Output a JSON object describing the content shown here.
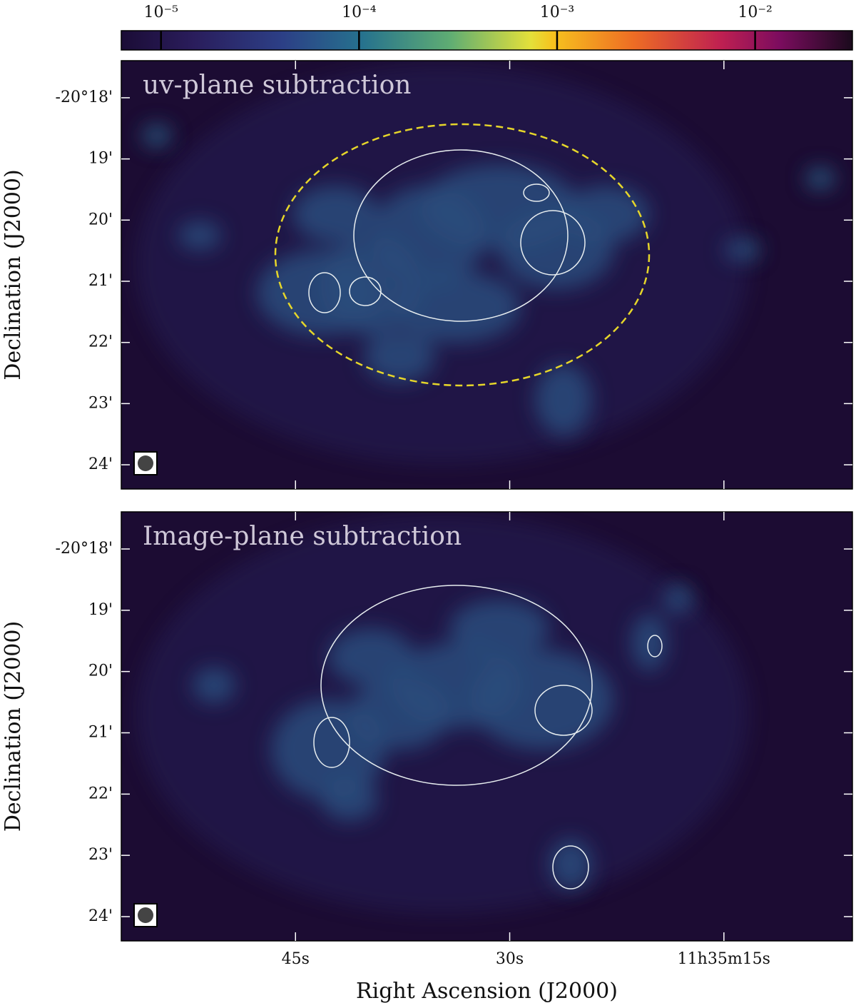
{
  "chart_data": [
    {
      "type": "image",
      "title": "uv-plane subtraction",
      "colorbar": {
        "log": true,
        "lim": [
          6.3e-06,
          0.031
        ],
        "ticks": [
          {
            "value": 1e-05,
            "label": "10⁻⁵"
          },
          {
            "value": 0.0001,
            "label": "10⁻⁴"
          },
          {
            "value": 0.001,
            "label": "10⁻³"
          },
          {
            "value": 0.01,
            "label": "10⁻²"
          }
        ]
      },
      "ylabel": "Declination (J2000)",
      "xlim": [
        57.2,
        6.0
      ],
      "xticks": [
        45,
        30,
        15
      ],
      "ylim": [
        -20.4066,
        -20.2899
      ],
      "yticks": [
        {
          "value": -20.3,
          "label": "-20°18'"
        },
        {
          "value": -20.31667,
          "label": "19'"
        },
        {
          "value": -20.33333,
          "label": "20'"
        },
        {
          "value": -20.35,
          "label": "21'"
        },
        {
          "value": -20.36667,
          "label": "22'"
        },
        {
          "value": -20.38333,
          "label": "23'"
        },
        {
          "value": -20.4,
          "label": "24'"
        }
      ]
    },
    {
      "type": "image",
      "title": "Image-plane subtraction",
      "ylabel": "Declination (J2000)",
      "xlabel": "Right Ascension (J2000)",
      "xlim": [
        57.2,
        6.0
      ],
      "xticks": [
        {
          "value": 45,
          "label": "45s"
        },
        {
          "value": 30,
          "label": "30s"
        },
        {
          "value": 15,
          "label": "11h35m15s"
        }
      ],
      "ylim": [
        -20.4066,
        -20.2899
      ],
      "yticks": [
        {
          "value": -20.3,
          "label": "-20°18'"
        },
        {
          "value": -20.31667,
          "label": "19'"
        },
        {
          "value": -20.33333,
          "label": "20'"
        },
        {
          "value": -20.35,
          "label": "21'"
        },
        {
          "value": -20.36667,
          "label": "22'"
        },
        {
          "value": -20.38333,
          "label": "23'"
        },
        {
          "value": -20.4,
          "label": "24'"
        }
      ]
    }
  ]
}
